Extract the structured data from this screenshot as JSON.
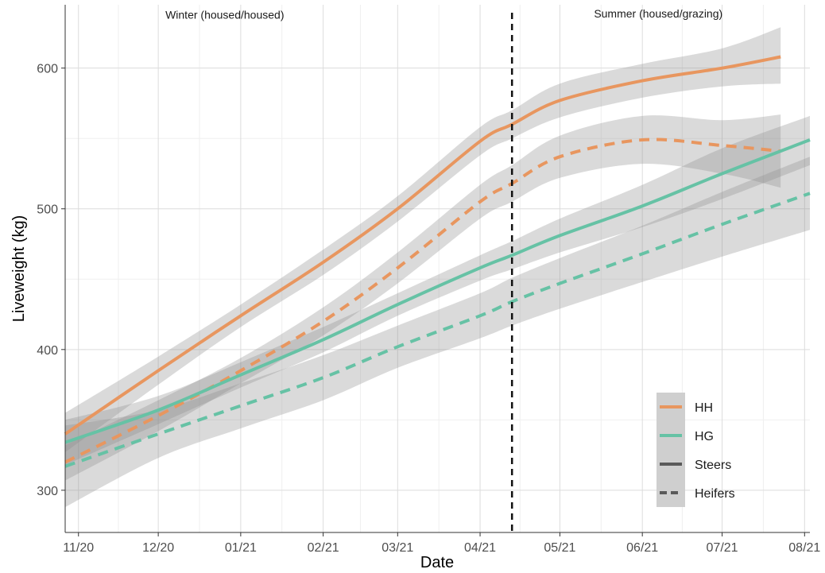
{
  "chart_data": {
    "type": "line",
    "title": "",
    "xlabel": "Date",
    "ylabel": "Liveweight (kg)",
    "x_ticks": [
      "11/20",
      "12/20",
      "01/21",
      "02/21",
      "03/21",
      "04/21",
      "05/21",
      "06/21",
      "07/21",
      "08/21"
    ],
    "x_tick_days": [
      0,
      30,
      61,
      92,
      120,
      151,
      181,
      212,
      242,
      273
    ],
    "xlim_days": [
      -5,
      275
    ],
    "y_ticks": [
      300,
      400,
      500,
      600
    ],
    "ylim": [
      270,
      645
    ],
    "grid": true,
    "vline": {
      "x_day": 163,
      "style": "dashed"
    },
    "annotations": [
      {
        "text": "Winter (housed/housed)",
        "x_day": 55,
        "y": 635
      },
      {
        "text": "Summer (housed/grazing)",
        "x_day": 218,
        "y": 636
      }
    ],
    "legend": {
      "position": "bottom-right",
      "entries": [
        {
          "label": "HH",
          "kind": "color",
          "color": "#e8965f"
        },
        {
          "label": "HG",
          "kind": "color",
          "color": "#66c2a5"
        },
        {
          "label": "Steers",
          "kind": "linetype",
          "dash": "solid"
        },
        {
          "label": "Heifers",
          "kind": "linetype",
          "dash": "dashed"
        }
      ]
    },
    "series": [
      {
        "group": "HH",
        "sex": "Steers",
        "color": "#e8965f",
        "dash": "solid",
        "x_days": [
          -5,
          30,
          61,
          92,
          120,
          151,
          163,
          181,
          212,
          242,
          264
        ],
        "y": [
          340,
          385,
          424,
          462,
          500,
          548,
          560,
          577,
          591,
          600,
          608
        ],
        "lower": [
          327,
          375,
          416,
          453,
          491,
          538,
          550,
          565,
          579,
          587,
          589
        ],
        "upper": [
          355,
          395,
          432,
          471,
          509,
          558,
          570,
          589,
          603,
          614,
          629
        ]
      },
      {
        "group": "HH",
        "sex": "Heifers",
        "color": "#e8965f",
        "dash": "dashed",
        "x_days": [
          -5,
          30,
          61,
          92,
          120,
          151,
          163,
          181,
          212,
          242,
          264
        ],
        "y": [
          320,
          353,
          385,
          420,
          458,
          505,
          518,
          537,
          549,
          545,
          541
        ],
        "lower": [
          307,
          342,
          376,
          410,
          447,
          493,
          505,
          522,
          532,
          525,
          515
        ],
        "upper": [
          332,
          364,
          394,
          430,
          469,
          517,
          531,
          552,
          566,
          563,
          567
        ]
      },
      {
        "group": "HG",
        "sex": "Steers",
        "color": "#66c2a5",
        "dash": "solid",
        "x_days": [
          -5,
          30,
          61,
          92,
          120,
          151,
          163,
          181,
          212,
          242,
          275
        ],
        "y": [
          334,
          357,
          382,
          407,
          432,
          458,
          467,
          481,
          502,
          525,
          549
        ],
        "lower": [
          318,
          347,
          373,
          398,
          424,
          449,
          457,
          469,
          487,
          507,
          531
        ],
        "upper": [
          350,
          367,
          391,
          416,
          440,
          467,
          477,
          493,
          517,
          543,
          566
        ]
      },
      {
        "group": "HG",
        "sex": "Heifers",
        "color": "#66c2a5",
        "dash": "dashed",
        "x_days": [
          -5,
          30,
          61,
          92,
          120,
          151,
          163,
          181,
          212,
          242,
          275
        ],
        "y": [
          317,
          340,
          360,
          380,
          402,
          424,
          434,
          447,
          468,
          489,
          511
        ],
        "lower": [
          288,
          323,
          344,
          364,
          387,
          408,
          417,
          429,
          448,
          466,
          485
        ],
        "upper": [
          346,
          357,
          376,
          396,
          417,
          440,
          451,
          465,
          488,
          512,
          537
        ]
      }
    ]
  }
}
